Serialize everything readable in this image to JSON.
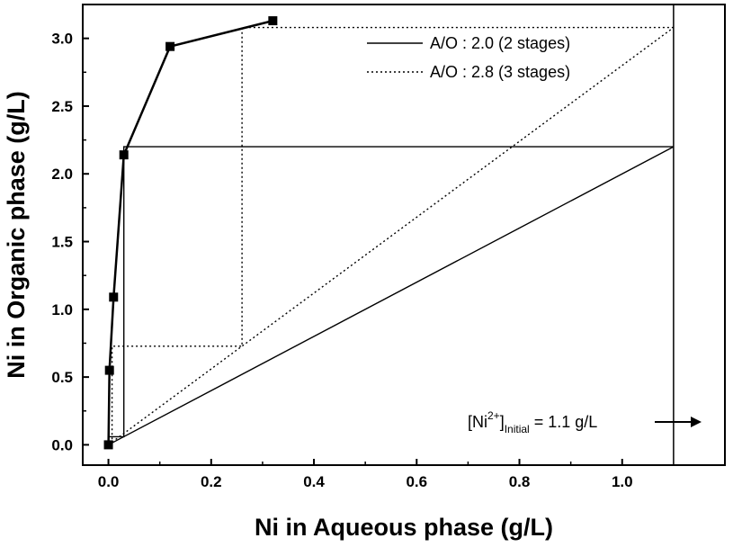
{
  "chart_data": {
    "type": "line",
    "title": "",
    "xlabel": "Ni in Aqueous phase (g/L)",
    "ylabel": "Ni in Organic phase (g/L)",
    "xlim": [
      -0.05,
      1.2
    ],
    "ylim": [
      -0.15,
      3.25
    ],
    "xticks": [
      "0.0",
      "0.2",
      "0.4",
      "0.6",
      "0.8",
      "1.0"
    ],
    "yticks": [
      "0.0",
      "0.5",
      "1.0",
      "1.5",
      "2.0",
      "2.5",
      "3.0"
    ],
    "grid": false,
    "legend_position": "top-right",
    "series": [
      {
        "style": "solid-with-squares",
        "x": [
          0.0,
          0.002,
          0.01,
          0.03,
          0.12,
          0.32
        ],
        "y": [
          0.0,
          0.55,
          1.09,
          2.14,
          2.94,
          3.13
        ]
      },
      {
        "name": "A/O : 2.0 (2 stages)",
        "style": "solid",
        "operating_line": {
          "x": [
            0.0,
            1.1
          ],
          "y": [
            0.0,
            2.2
          ]
        },
        "steps": [
          [
            1.1,
            2.2
          ],
          [
            0.03,
            2.2
          ],
          [
            0.03,
            0.06
          ],
          [
            0.002,
            0.06
          ]
        ]
      },
      {
        "name": "A/O : 2.8 (3 stages)",
        "style": "dotted",
        "operating_line": {
          "x": [
            0.0,
            1.1
          ],
          "y": [
            0.0,
            3.08
          ]
        },
        "steps": [
          [
            1.1,
            3.08
          ],
          [
            0.26,
            3.08
          ],
          [
            0.26,
            0.728
          ],
          [
            0.007,
            0.728
          ],
          [
            0.007,
            0.02
          ],
          [
            0.0,
            0.02
          ]
        ]
      }
    ],
    "vertical_line_x": 1.1,
    "annotation": {
      "base": "[Ni",
      "sup": "2+",
      "mid": "]",
      "sub": "Initial",
      "rest": " = 1.1 g/L",
      "arrow": "right"
    }
  }
}
